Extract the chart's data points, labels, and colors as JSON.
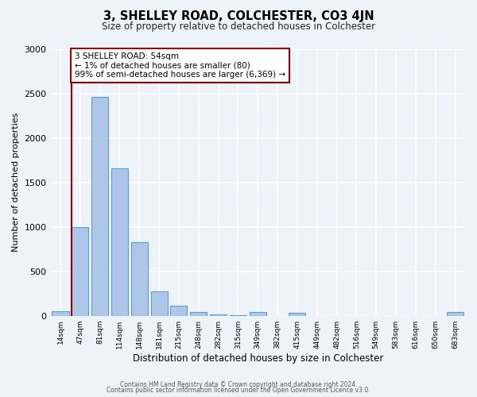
{
  "title": "3, SHELLEY ROAD, COLCHESTER, CO3 4JN",
  "subtitle": "Size of property relative to detached houses in Colchester",
  "xlabel": "Distribution of detached houses by size in Colchester",
  "ylabel": "Number of detached properties",
  "bar_labels": [
    "14sqm",
    "47sqm",
    "81sqm",
    "114sqm",
    "148sqm",
    "181sqm",
    "215sqm",
    "248sqm",
    "282sqm",
    "315sqm",
    "349sqm",
    "382sqm",
    "415sqm",
    "449sqm",
    "482sqm",
    "516sqm",
    "549sqm",
    "583sqm",
    "616sqm",
    "650sqm",
    "683sqm"
  ],
  "bar_values": [
    50,
    1000,
    2460,
    1660,
    830,
    270,
    115,
    45,
    15,
    5,
    40,
    0,
    30,
    0,
    0,
    0,
    0,
    0,
    0,
    0,
    40
  ],
  "bar_color": "#aec6e8",
  "bar_edge_color": "#5a9fd4",
  "vline_color": "#990000",
  "annotation_text": "3 SHELLEY ROAD: 54sqm\n← 1% of detached houses are smaller (80)\n99% of semi-detached houses are larger (6,369) →",
  "annotation_box_color": "#ffffff",
  "annotation_box_edge_color": "#990000",
  "ylim": [
    0,
    3000
  ],
  "yticks": [
    0,
    500,
    1000,
    1500,
    2000,
    2500,
    3000
  ],
  "footer1": "Contains HM Land Registry data © Crown copyright and database right 2024.",
  "footer2": "Contains public sector information licensed under the Open Government Licence v3.0.",
  "bg_color": "#eef2f9",
  "grid_color": "#ffffff"
}
